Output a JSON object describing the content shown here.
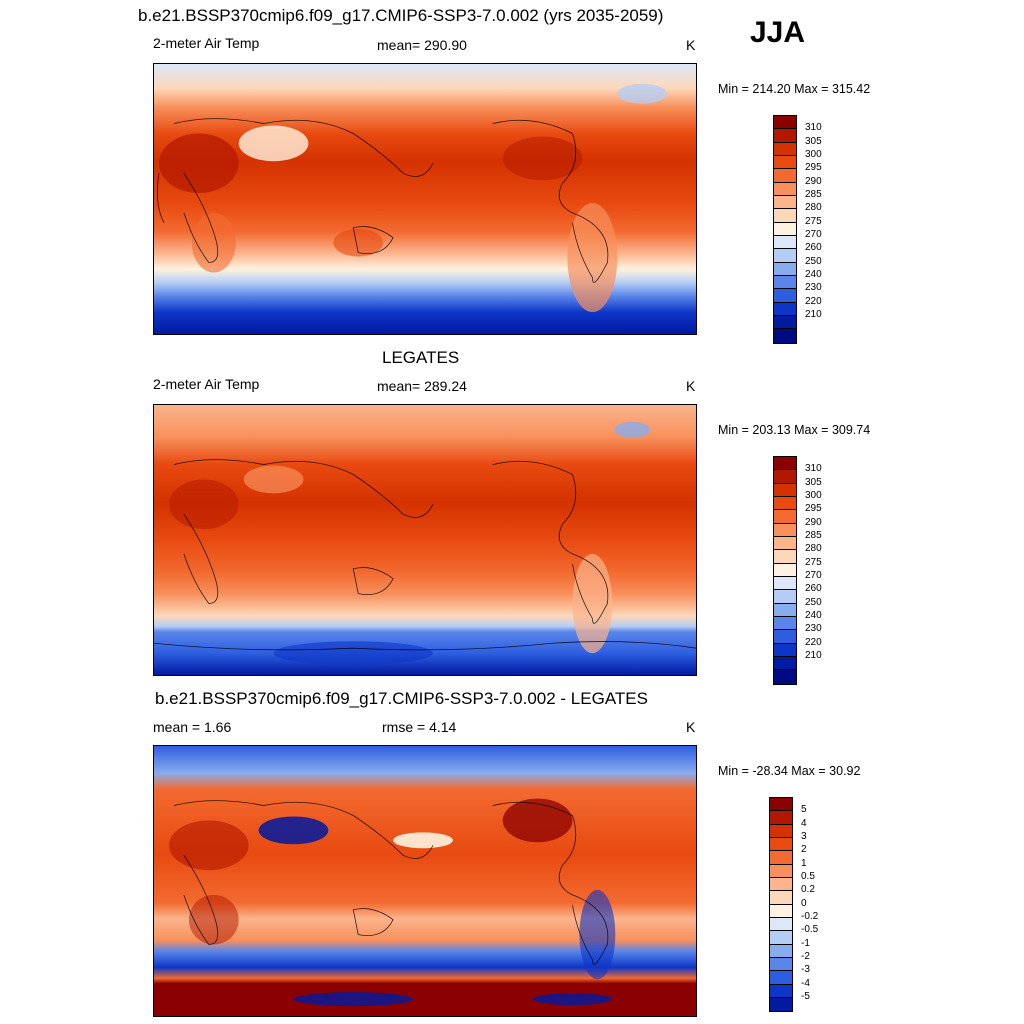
{
  "season": "JJA",
  "panels": [
    {
      "header": "b.e21.BSSP370cmip6.f09_g17.CMIP6-SSP3-7.0.002 (yrs 2035-2059)",
      "left": "2-meter Air Temp",
      "center": "mean= 290.90",
      "units": "K",
      "minmax": "Min = 214.20 Max = 315.42"
    },
    {
      "header": "LEGATES",
      "left": "2-meter Air Temp",
      "center": "mean= 289.24",
      "units": "K",
      "minmax": "Min = 203.13 Max = 309.74"
    },
    {
      "header": "b.e21.BSSP370cmip6.f09_g17.CMIP6-SSP3-7.0.002 - LEGATES",
      "left": "mean =   1.66",
      "center": "rmse =   4.14",
      "units": "K",
      "minmax": "Min = -28.34 Max =  30.92"
    }
  ],
  "abs_colorbar": {
    "labels": [
      "310",
      "305",
      "300",
      "295",
      "290",
      "285",
      "280",
      "275",
      "270",
      "260",
      "250",
      "240",
      "230",
      "220",
      "210"
    ],
    "colors": [
      "#8b0000",
      "#b21800",
      "#d43200",
      "#e84a10",
      "#f26a30",
      "#f8905c",
      "#fbb48c",
      "#fdd8b8",
      "#fff2e0",
      "#dce8f8",
      "#b4cdf4",
      "#88acee",
      "#5a86ea",
      "#2d5ee0",
      "#0d36c8",
      "#001aa0",
      "#000a80"
    ]
  },
  "diff_colorbar": {
    "labels": [
      "5",
      "4",
      "3",
      "2",
      "1",
      "0.5",
      "0.2",
      "0",
      "-0.2",
      "-0.5",
      "-1",
      "-2",
      "-3",
      "-4",
      "-5"
    ],
    "colors": [
      "#8b0000",
      "#b21800",
      "#d43200",
      "#e84a10",
      "#f26a30",
      "#f8905c",
      "#fbb48c",
      "#fdd8b8",
      "#fff2e0",
      "#dce8f8",
      "#b4cdf4",
      "#88acee",
      "#5a86ea",
      "#2d5ee0",
      "#0d36c8",
      "#001aa0"
    ]
  }
}
